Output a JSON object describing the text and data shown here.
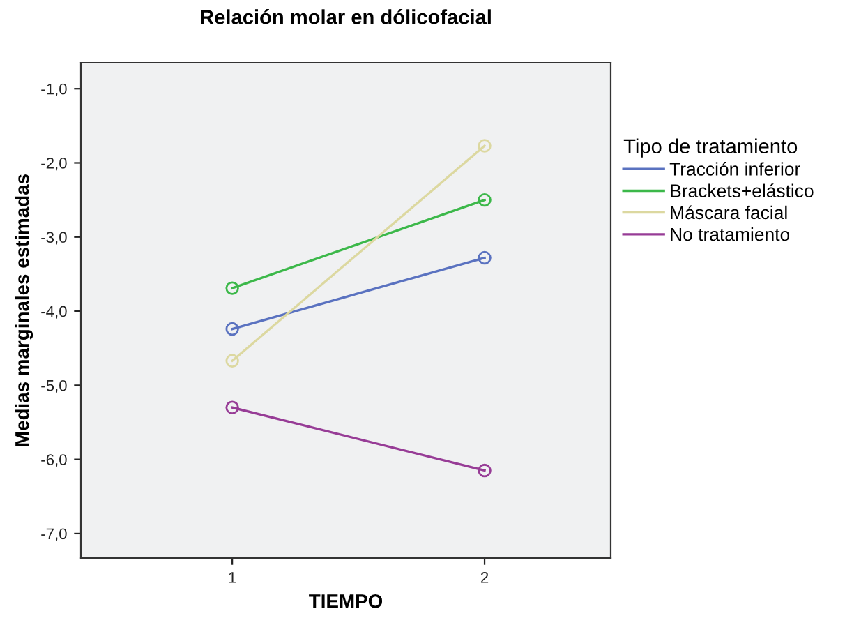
{
  "chart_data": {
    "type": "line",
    "title": "Relación molar en dólicofacial",
    "xlabel": "TIEMPO",
    "ylabel": "Medias marginales estimadas",
    "legend_title": "Tipo de tratamiento",
    "categories": [
      "1",
      "2"
    ],
    "series": [
      {
        "name": "Tracción inferior",
        "color": "#5a72c0",
        "values": [
          -4.24,
          -3.28
        ]
      },
      {
        "name": "Brackets+elástico",
        "color": "#3cb84a",
        "values": [
          -3.69,
          -2.5
        ]
      },
      {
        "name": "Máscara facial",
        "color": "#dcd8a0",
        "values": [
          -4.67,
          -1.77
        ]
      },
      {
        "name": "No tratamiento",
        "color": "#973c96",
        "values": [
          -5.3,
          -6.15
        ]
      }
    ],
    "ylim": [
      -7.33,
      -0.65
    ],
    "yticks": [
      {
        "value": -7,
        "label": "-7,0"
      },
      {
        "value": -6,
        "label": "-6,0"
      },
      {
        "value": -5,
        "label": "-5,0"
      },
      {
        "value": -4,
        "label": "-4,0"
      },
      {
        "value": -3,
        "label": "-3,0"
      },
      {
        "value": -2,
        "label": "-2,0"
      },
      {
        "value": -1,
        "label": "-1,0"
      }
    ],
    "grid": false,
    "legend": "right",
    "marker": "circle",
    "line_style": "solid"
  }
}
